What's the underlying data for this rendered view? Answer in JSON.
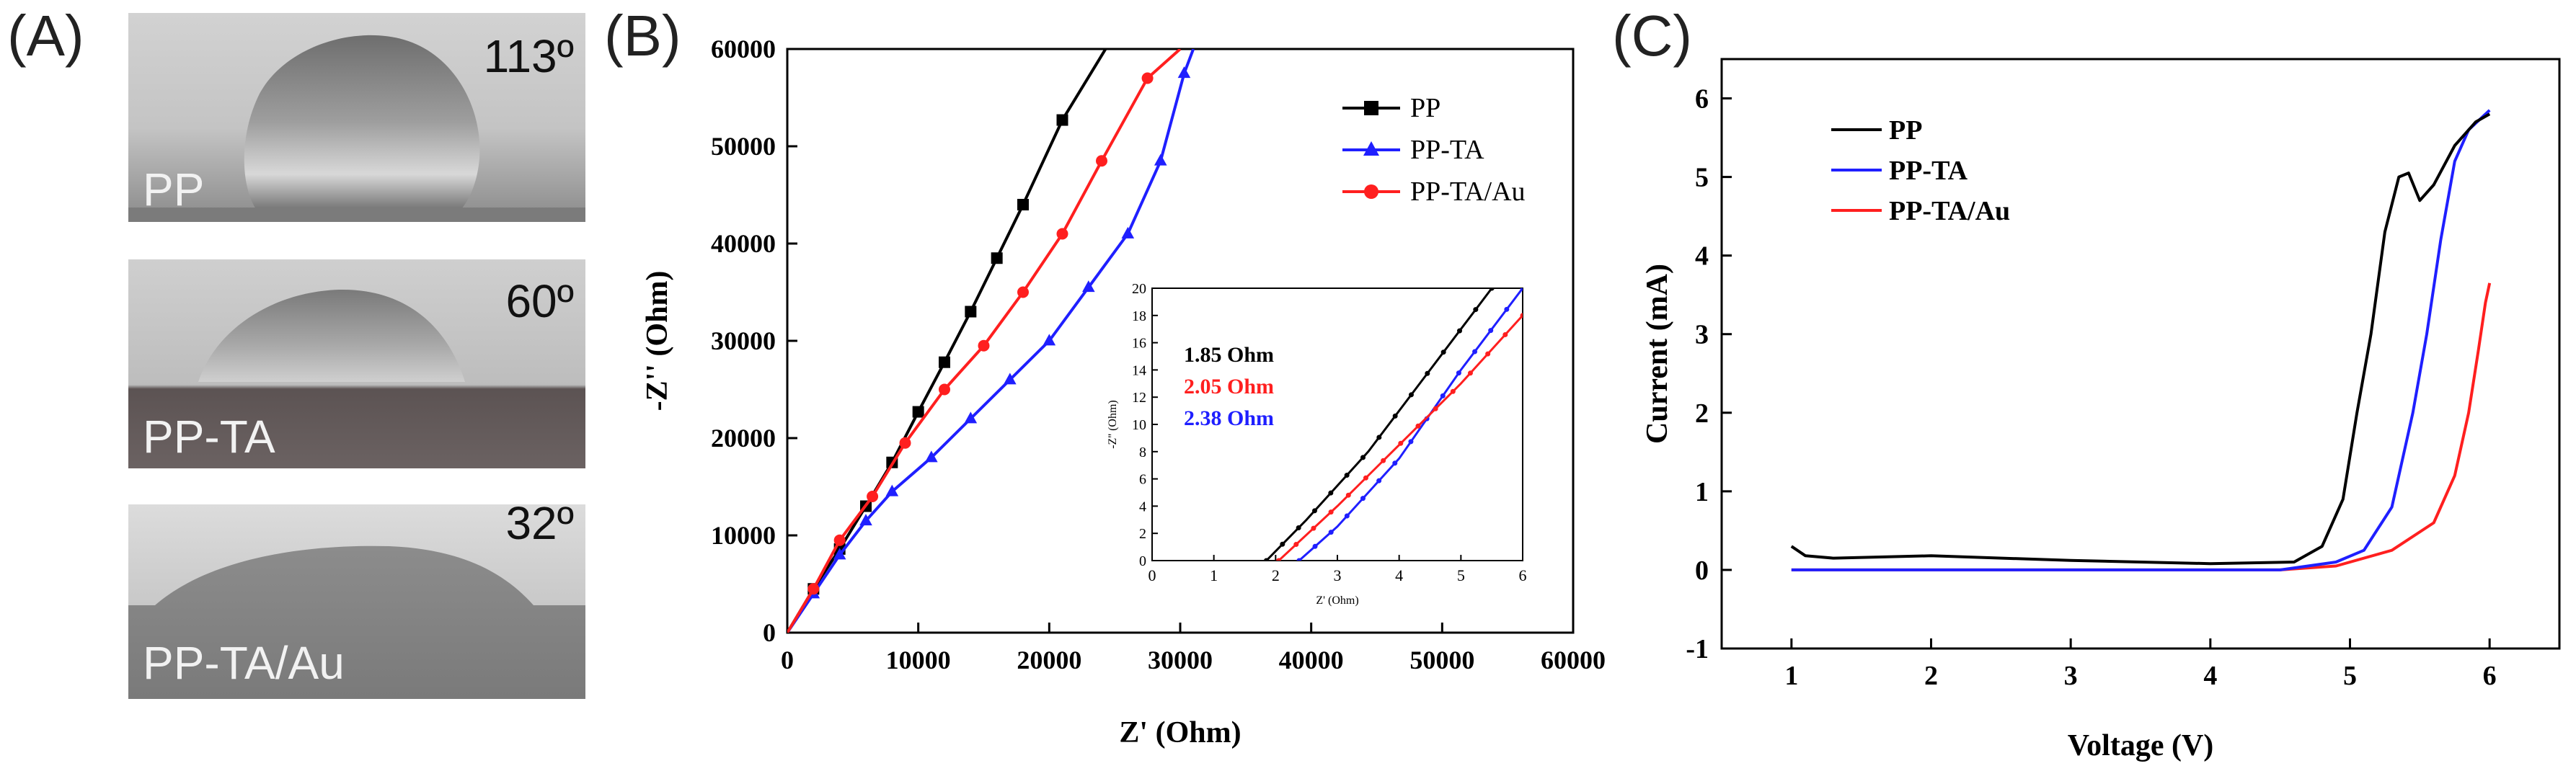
{
  "panels": {
    "a": {
      "label": "(A)"
    },
    "b": {
      "label": "(B)"
    },
    "c": {
      "label": "(C)"
    }
  },
  "photos": [
    {
      "sample": "PP",
      "angle": "113º"
    },
    {
      "sample": "PP-TA",
      "angle": "60º"
    },
    {
      "sample": "PP-TA/Au",
      "angle": "32º"
    }
  ],
  "colors": {
    "pp": "#000000",
    "ppta": "#1f1fff",
    "pptaau": "#ff1f1f"
  },
  "chart_data": [
    {
      "type": "line",
      "panel": "B",
      "xlabel": "Z' (Ohm)",
      "ylabel": "-Z'' (Ohm)",
      "xlim": [
        0,
        60000
      ],
      "ylim": [
        0,
        60000
      ],
      "xticks": [
        "0",
        "10000",
        "20000",
        "30000",
        "40000",
        "50000",
        "60000"
      ],
      "yticks": [
        "0",
        "10000",
        "20000",
        "30000",
        "40000",
        "50000",
        "60000"
      ],
      "legend_position": "top-right",
      "series": [
        {
          "name": "PP",
          "marker": "square",
          "color": "#000000",
          "points": [
            [
              0,
              0
            ],
            [
              2000,
              4500
            ],
            [
              4000,
              8600
            ],
            [
              6000,
              13000
            ],
            [
              8000,
              17500
            ],
            [
              10000,
              22700
            ],
            [
              12000,
              27800
            ],
            [
              14000,
              33000
            ],
            [
              16000,
              38500
            ],
            [
              18000,
              44000
            ],
            [
              21000,
              52700
            ],
            [
              24300,
              60000
            ]
          ]
        },
        {
          "name": "PP-TA",
          "marker": "triangle",
          "color": "#1f1fff",
          "points": [
            [
              0,
              0
            ],
            [
              2000,
              4000
            ],
            [
              4000,
              8000
            ],
            [
              6000,
              11500
            ],
            [
              8000,
              14500
            ],
            [
              11000,
              18000
            ],
            [
              14000,
              22000
            ],
            [
              17000,
              26000
            ],
            [
              20000,
              30000
            ],
            [
              23000,
              35500
            ],
            [
              26000,
              41000
            ],
            [
              28500,
              48500
            ],
            [
              30300,
              57500
            ],
            [
              31000,
              60000
            ]
          ]
        },
        {
          "name": "PP-TA/Au",
          "marker": "circle",
          "color": "#ff1f1f",
          "points": [
            [
              0,
              0
            ],
            [
              2000,
              4500
            ],
            [
              4000,
              9500
            ],
            [
              6500,
              14000
            ],
            [
              9000,
              19500
            ],
            [
              12000,
              25000
            ],
            [
              15000,
              29500
            ],
            [
              18000,
              35000
            ],
            [
              21000,
              41000
            ],
            [
              24000,
              48500
            ],
            [
              27500,
              57000
            ],
            [
              30000,
              60000
            ]
          ]
        }
      ],
      "inset": {
        "xlabel": "Z' (Ohm)",
        "ylabel": "-Z'' (Ohm)",
        "xlim": [
          0,
          6
        ],
        "ylim": [
          0,
          20
        ],
        "xticks": [
          "0",
          "1",
          "2",
          "3",
          "4",
          "5",
          "6"
        ],
        "yticks": [
          "0",
          "2",
          "4",
          "6",
          "8",
          "10",
          "12",
          "14",
          "16",
          "18",
          "20"
        ],
        "annotations": [
          {
            "text": "1.85 Ohm",
            "color": "#000000"
          },
          {
            "text": "2.05 Ohm",
            "color": "#ff1f1f"
          },
          {
            "text": "2.38 Ohm",
            "color": "#1f1fff"
          }
        ],
        "series": [
          {
            "name": "PP",
            "color": "#000000",
            "points": [
              [
                1.85,
                0
              ],
              [
                2.5,
                3
              ],
              [
                3.5,
                8
              ],
              [
                4.5,
                14
              ],
              [
                5.5,
                20
              ]
            ]
          },
          {
            "name": "PP-TA",
            "color": "#1f1fff",
            "points": [
              [
                2.38,
                0
              ],
              [
                3,
                2.5
              ],
              [
                4,
                7.5
              ],
              [
                5,
                14
              ],
              [
                6,
                20
              ]
            ]
          },
          {
            "name": "PP-TA/Au",
            "color": "#ff1f1f",
            "points": [
              [
                2.05,
                0
              ],
              [
                3,
                4
              ],
              [
                4,
                8.5
              ],
              [
                5,
                13
              ],
              [
                6,
                18
              ]
            ]
          }
        ]
      }
    },
    {
      "type": "line",
      "panel": "C",
      "xlabel": "Voltage (V)",
      "ylabel": "Current (mA)",
      "xlim": [
        0.5,
        6.5
      ],
      "ylim": [
        -1,
        6.5
      ],
      "xticks": [
        "1",
        "2",
        "3",
        "4",
        "5",
        "6"
      ],
      "yticks": [
        "-1",
        "0",
        "1",
        "2",
        "3",
        "4",
        "5",
        "6"
      ],
      "legend_position": "top-left",
      "series": [
        {
          "name": "PP",
          "color": "#000000",
          "points": [
            [
              1.0,
              0.3
            ],
            [
              1.1,
              0.18
            ],
            [
              1.3,
              0.15
            ],
            [
              2.0,
              0.18
            ],
            [
              3.0,
              0.12
            ],
            [
              4.0,
              0.08
            ],
            [
              4.6,
              0.1
            ],
            [
              4.8,
              0.3
            ],
            [
              4.95,
              0.9
            ],
            [
              5.05,
              2.0
            ],
            [
              5.15,
              3.0
            ],
            [
              5.25,
              4.3
            ],
            [
              5.35,
              5.0
            ],
            [
              5.42,
              5.05
            ],
            [
              5.5,
              4.7
            ],
            [
              5.6,
              4.9
            ],
            [
              5.75,
              5.4
            ],
            [
              5.9,
              5.7
            ],
            [
              6.0,
              5.8
            ]
          ]
        },
        {
          "name": "PP-TA",
          "color": "#1f1fff",
          "points": [
            [
              1.0,
              0.0
            ],
            [
              2.0,
              0.0
            ],
            [
              3.0,
              0.0
            ],
            [
              4.0,
              0.0
            ],
            [
              4.5,
              0.0
            ],
            [
              4.9,
              0.1
            ],
            [
              5.1,
              0.25
            ],
            [
              5.3,
              0.8
            ],
            [
              5.45,
              2.0
            ],
            [
              5.55,
              3.0
            ],
            [
              5.65,
              4.2
            ],
            [
              5.75,
              5.2
            ],
            [
              5.85,
              5.6
            ],
            [
              6.0,
              5.85
            ]
          ]
        },
        {
          "name": "PP-TA/Au",
          "color": "#ff1f1f",
          "points": [
            [
              1.0,
              0.0
            ],
            [
              2.0,
              0.0
            ],
            [
              3.0,
              0.0
            ],
            [
              4.0,
              0.0
            ],
            [
              4.5,
              0.0
            ],
            [
              4.9,
              0.05
            ],
            [
              5.3,
              0.25
            ],
            [
              5.6,
              0.6
            ],
            [
              5.75,
              1.2
            ],
            [
              5.85,
              2.0
            ],
            [
              5.92,
              2.8
            ],
            [
              5.97,
              3.4
            ],
            [
              6.0,
              3.65
            ]
          ]
        }
      ]
    }
  ]
}
